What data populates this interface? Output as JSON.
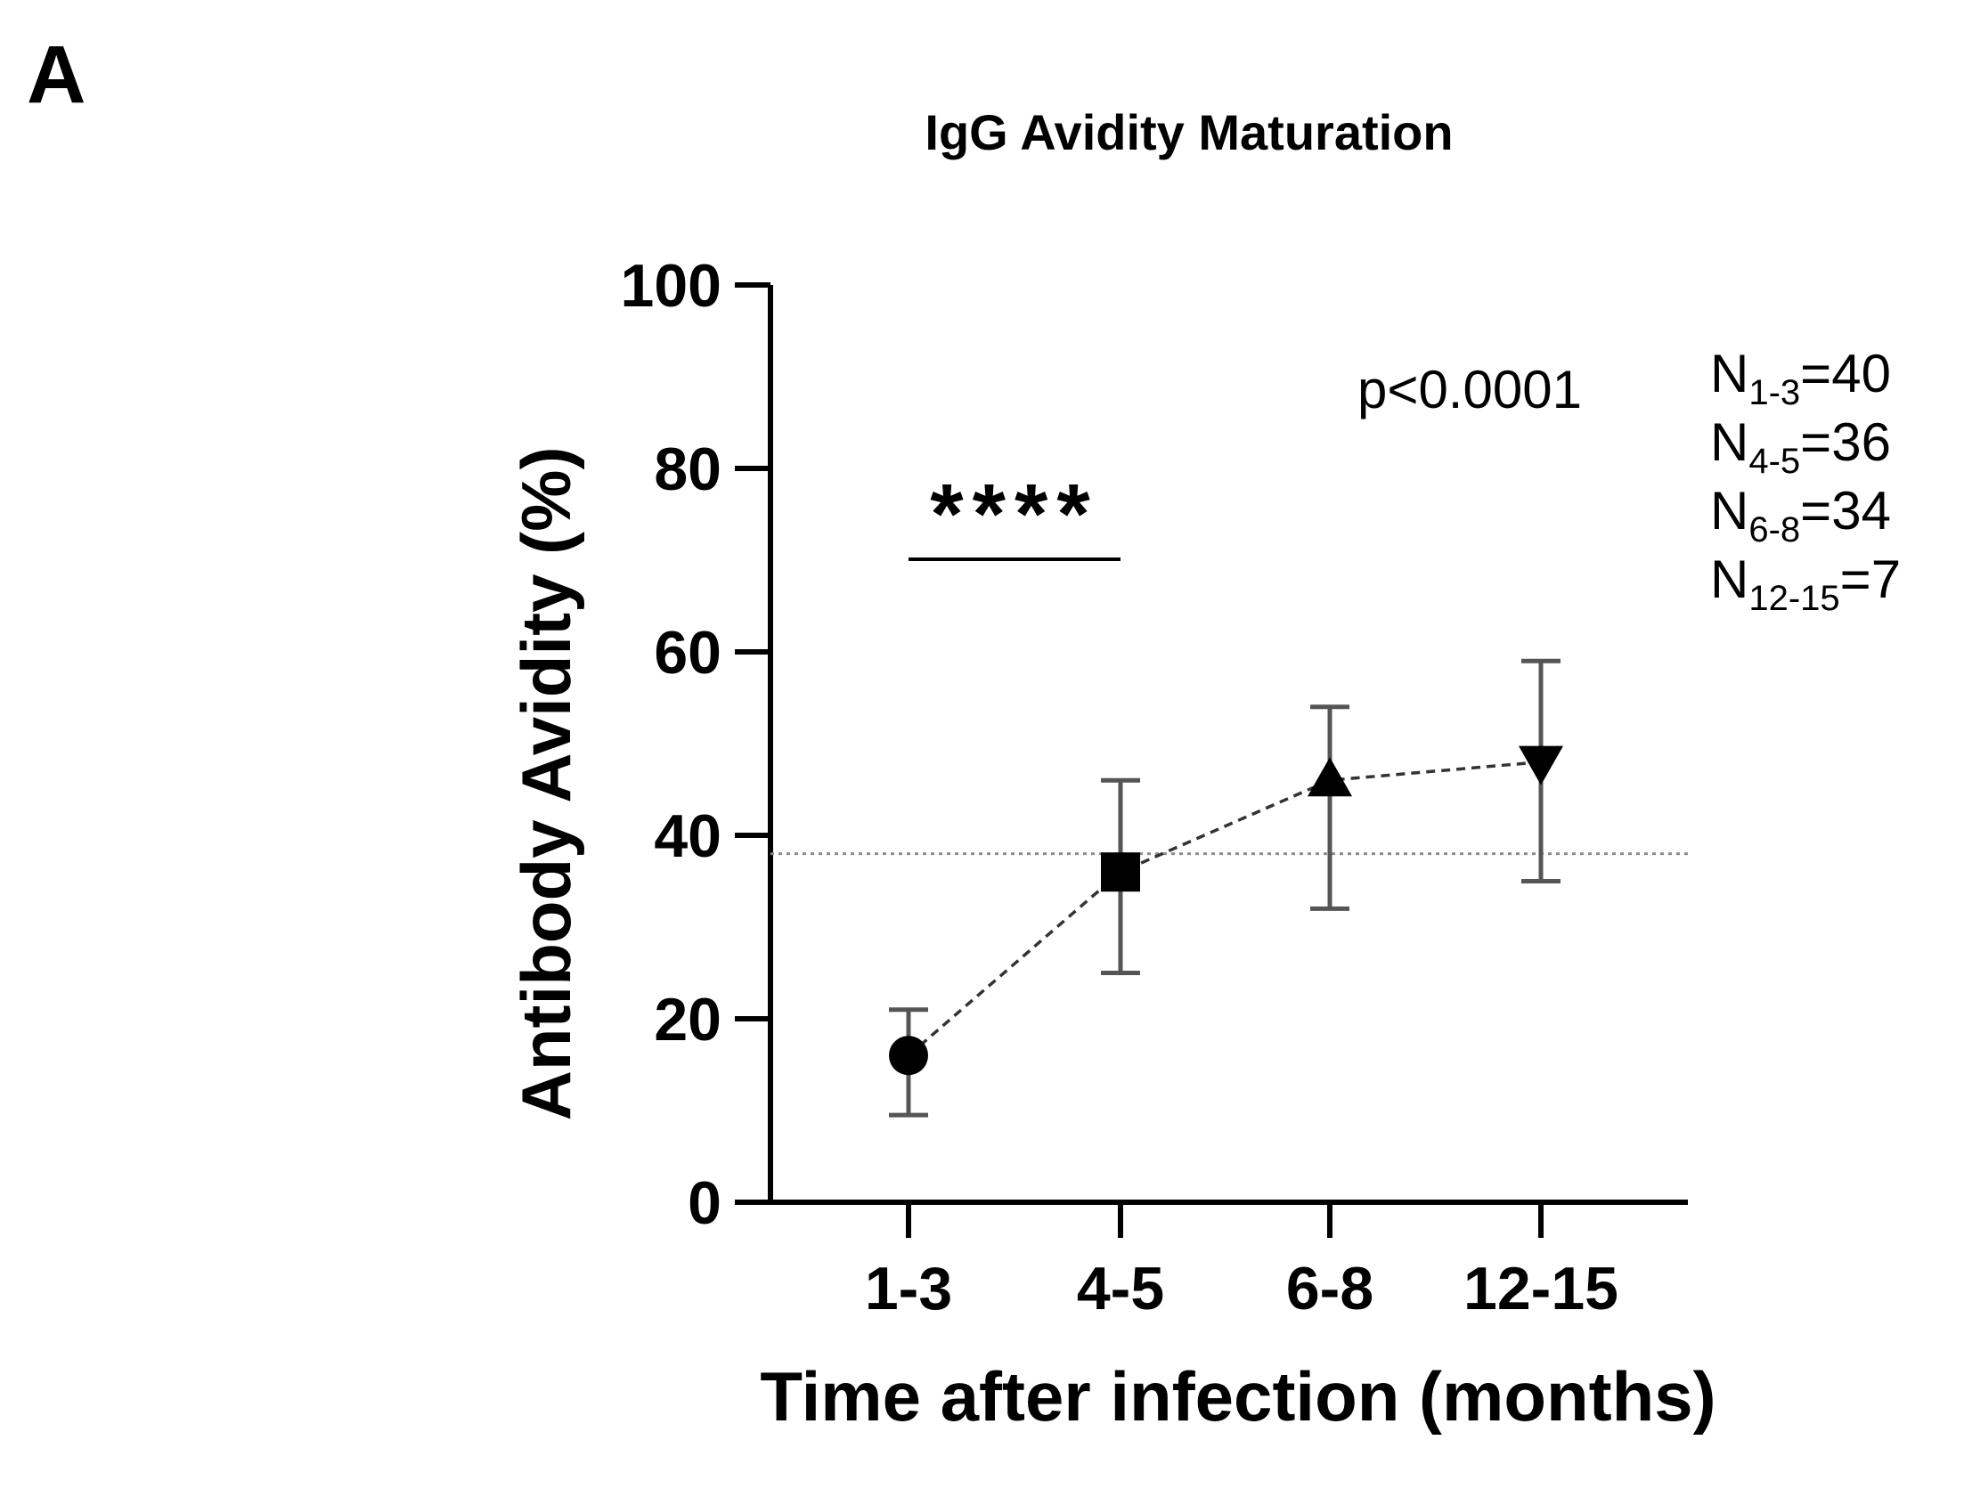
{
  "panel_label": "A",
  "chart_data": {
    "type": "scatter",
    "title": "IgG Avidity Maturation",
    "xlabel": "Time after infection (months)",
    "ylabel": "Antibody Avidity (%)",
    "categories": [
      "1-3",
      "4-5",
      "6-8",
      "12-15"
    ],
    "ylim": [
      0,
      100
    ],
    "yticks": [
      0,
      20,
      40,
      60,
      80,
      100
    ],
    "series": [
      {
        "name": "IgG avidity",
        "values": [
          16,
          36,
          46,
          48
        ],
        "err_low": [
          9.5,
          25,
          32,
          35
        ],
        "err_high": [
          21,
          46,
          54,
          59
        ],
        "markers": [
          "circle",
          "square",
          "triangle-up",
          "triangle-down"
        ],
        "line_style": "dashed"
      }
    ],
    "reference_line": {
      "y": 38,
      "style": "dotted"
    },
    "significance": {
      "between": [
        "1-3",
        "4-5"
      ],
      "label": "****"
    },
    "p_value": "p<0.0001",
    "sample_sizes": [
      {
        "base": "N",
        "sub": "1-3",
        "value": "=40"
      },
      {
        "base": "N",
        "sub": "4-5",
        "value": "=36"
      },
      {
        "base": "N",
        "sub": "6-8",
        "value": "=34"
      },
      {
        "base": "N",
        "sub": "12-15",
        "value": "=7"
      }
    ],
    "grid": false,
    "legend": "none"
  }
}
